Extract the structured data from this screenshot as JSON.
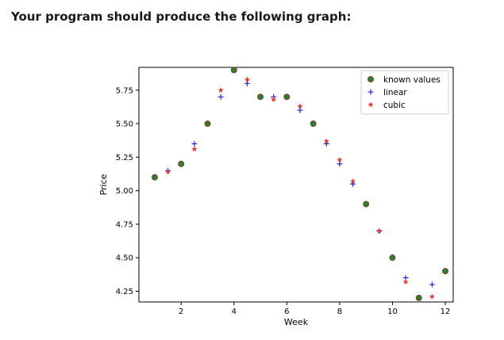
{
  "heading": "Your program should produce the following graph:",
  "chart_data": {
    "type": "scatter",
    "title": "",
    "xlabel": "Week",
    "ylabel": "Price",
    "xlim": [
      0.4,
      12.3
    ],
    "ylim": [
      4.17,
      5.92
    ],
    "xticks": [
      2,
      4,
      6,
      8,
      10,
      12
    ],
    "yticks": [
      4.25,
      4.5,
      4.75,
      5.0,
      5.25,
      5.5,
      5.75
    ],
    "ytick_labels": [
      "4.25",
      "4.50",
      "4.75",
      "5.00",
      "5.25",
      "5.50",
      "5.75"
    ],
    "grid": false,
    "legend_position": "top-right",
    "series": [
      {
        "name": "known values",
        "marker": "circle",
        "color": "#2e7d32",
        "points": [
          [
            1,
            5.1
          ],
          [
            2,
            5.2
          ],
          [
            3,
            5.5
          ],
          [
            4,
            5.9
          ],
          [
            5,
            5.7
          ],
          [
            6,
            5.7
          ],
          [
            7,
            5.5
          ],
          [
            9,
            4.9
          ],
          [
            10,
            4.5
          ],
          [
            11,
            4.2
          ],
          [
            12,
            4.4
          ]
        ]
      },
      {
        "name": "linear",
        "marker": "plus",
        "color": "#1515c8",
        "points": [
          [
            1.5,
            5.15
          ],
          [
            2.5,
            5.35
          ],
          [
            3.5,
            5.7
          ],
          [
            4.5,
            5.8
          ],
          [
            5.5,
            5.7
          ],
          [
            6.5,
            5.6
          ],
          [
            7.5,
            5.35
          ],
          [
            8,
            5.2
          ],
          [
            8.5,
            5.05
          ],
          [
            9.5,
            4.7
          ],
          [
            10.5,
            4.35
          ],
          [
            11.5,
            4.3
          ]
        ]
      },
      {
        "name": "cubic",
        "marker": "star",
        "color": "#e53935",
        "points": [
          [
            1.5,
            5.14
          ],
          [
            2.5,
            5.31
          ],
          [
            3.5,
            5.75
          ],
          [
            4.5,
            5.83
          ],
          [
            5.5,
            5.68
          ],
          [
            6.5,
            5.63
          ],
          [
            7.5,
            5.37
          ],
          [
            8,
            5.23
          ],
          [
            8.5,
            5.07
          ],
          [
            9.5,
            4.7
          ],
          [
            10.5,
            4.32
          ],
          [
            11.5,
            4.21
          ]
        ]
      }
    ]
  }
}
